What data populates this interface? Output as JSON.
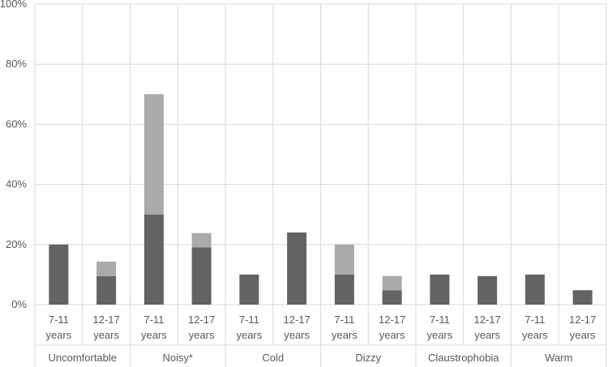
{
  "chart_data": {
    "type": "bar",
    "stacked": true,
    "ylim": [
      0,
      100
    ],
    "y_ticks": [
      "0%",
      "20%",
      "40%",
      "60%",
      "80%",
      "100%"
    ],
    "y_tick_values": [
      0,
      20,
      40,
      60,
      80,
      100
    ],
    "grid": true,
    "groups": [
      {
        "label": "Uncomfortable",
        "bars": [
          {
            "label_line1": "7-11",
            "label_line2": "years",
            "dark": 20,
            "light": 0
          },
          {
            "label_line1": "12-17",
            "label_line2": "years",
            "dark": 9.5,
            "light": 4.8
          }
        ]
      },
      {
        "label": "Noisy*",
        "bars": [
          {
            "label_line1": "7-11",
            "label_line2": "years",
            "dark": 30,
            "light": 40
          },
          {
            "label_line1": "12-17",
            "label_line2": "years",
            "dark": 19,
            "light": 4.8
          }
        ]
      },
      {
        "label": "Cold",
        "bars": [
          {
            "label_line1": "7-11",
            "label_line2": "years",
            "dark": 10,
            "light": 0
          },
          {
            "label_line1": "12-17",
            "label_line2": "years",
            "dark": 24,
            "light": 0
          }
        ]
      },
      {
        "label": "Dizzy",
        "bars": [
          {
            "label_line1": "7-11",
            "label_line2": "years",
            "dark": 10,
            "light": 10
          },
          {
            "label_line1": "12-17",
            "label_line2": "years",
            "dark": 4.8,
            "light": 4.7
          }
        ]
      },
      {
        "label": "Claustrophobia",
        "bars": [
          {
            "label_line1": "7-11",
            "label_line2": "years",
            "dark": 10,
            "light": 0
          },
          {
            "label_line1": "12-17",
            "label_line2": "years",
            "dark": 9.5,
            "light": 0
          }
        ]
      },
      {
        "label": "Warm",
        "bars": [
          {
            "label_line1": "7-11",
            "label_line2": "years",
            "dark": 10,
            "light": 0
          },
          {
            "label_line1": "12-17",
            "label_line2": "years",
            "dark": 4.8,
            "light": 0
          }
        ]
      }
    ],
    "colors": {
      "dark": "#636363",
      "light": "#aaaaaa",
      "grid": "#d9d9d9"
    }
  }
}
